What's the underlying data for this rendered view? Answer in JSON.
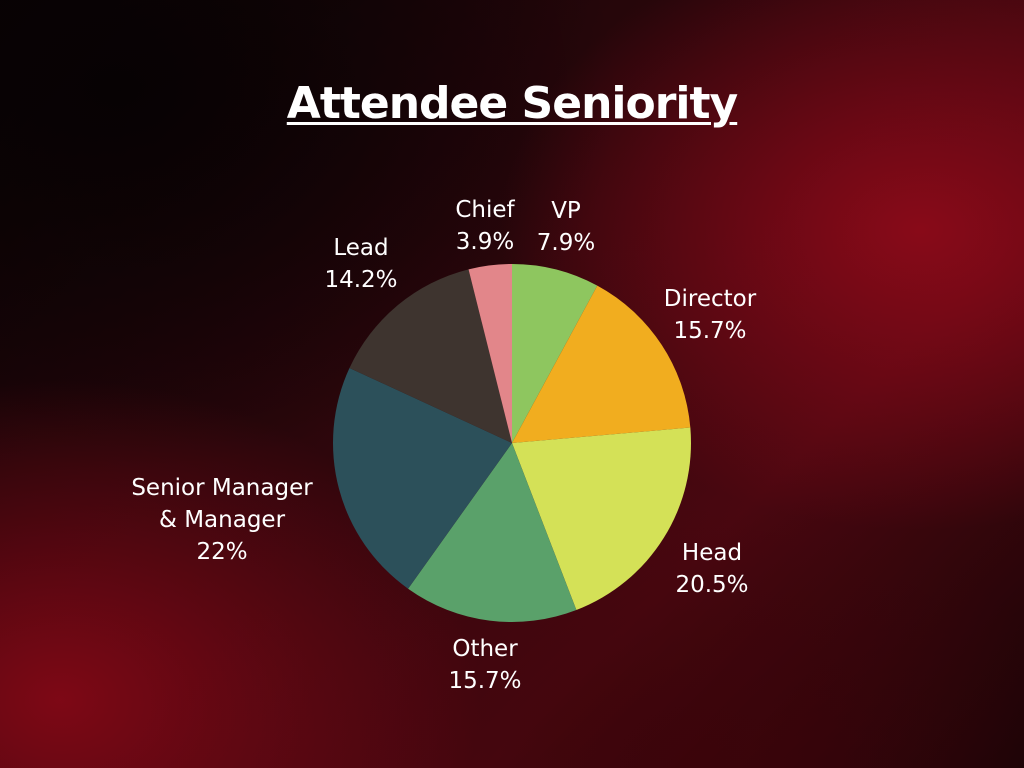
{
  "chart_data": {
    "type": "pie",
    "title": "Attendee Seniority",
    "slices": [
      {
        "category": [
          "VP"
        ],
        "value_label": "7.9%",
        "value": 7.9,
        "color": "#8ec65f"
      },
      {
        "category": [
          "Director"
        ],
        "value_label": "15.7%",
        "value": 15.7,
        "color": "#f1ad1f"
      },
      {
        "category": [
          "Head"
        ],
        "value_label": "20.5%",
        "value": 20.5,
        "color": "#d4e157"
      },
      {
        "category": [
          "Other"
        ],
        "value_label": "15.7%",
        "value": 15.7,
        "color": "#5aa16a"
      },
      {
        "category": [
          "Senior Manager",
          "& Manager"
        ],
        "value_label": "22%",
        "value": 22,
        "color": "#2c505a"
      },
      {
        "category": [
          "Lead"
        ],
        "value_label": "14.2%",
        "value": 14.2,
        "color": "#3e342f"
      },
      {
        "category": [
          "Chief"
        ],
        "value_label": "3.9%",
        "value": 3.9,
        "color": "#e2868a"
      }
    ],
    "legend": "none",
    "label_color": "#ffffff"
  }
}
